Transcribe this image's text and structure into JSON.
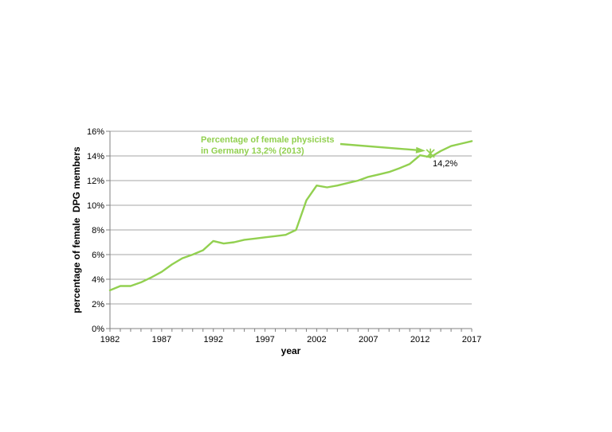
{
  "page": {
    "background": "#ffffff"
  },
  "chart_data": {
    "type": "line",
    "title": "",
    "xlabel": "year",
    "ylabel": "percentage of female  DPG members",
    "xlim": [
      1982,
      2017
    ],
    "ylim": [
      0,
      16
    ],
    "grid": "horizontal",
    "legend": "none",
    "x": [
      1982,
      1983,
      1984,
      1985,
      1986,
      1987,
      1988,
      1989,
      1990,
      1991,
      1992,
      1993,
      1994,
      1995,
      1996,
      1997,
      1998,
      1999,
      2000,
      2001,
      2002,
      2003,
      2004,
      2005,
      2006,
      2007,
      2008,
      2009,
      2010,
      2011,
      2012,
      2013,
      2014,
      2015,
      2016,
      2017
    ],
    "series": [
      {
        "name": "percentage of female DPG members",
        "values": [
          3.1,
          3.45,
          3.45,
          3.75,
          4.15,
          4.6,
          5.2,
          5.7,
          6.0,
          6.35,
          7.1,
          6.9,
          7.0,
          7.2,
          7.3,
          7.4,
          7.5,
          7.6,
          8.0,
          10.4,
          11.6,
          11.45,
          11.6,
          11.8,
          12.0,
          12.3,
          12.5,
          12.7,
          13.0,
          13.35,
          14.05,
          13.9,
          14.4,
          14.8,
          15.0,
          15.2
        ]
      }
    ],
    "xticks": {
      "values": [
        1982,
        1987,
        1992,
        1997,
        2002,
        2007,
        2012,
        2017
      ],
      "labels": [
        "1982",
        "1987",
        "1992",
        "1997",
        "2002",
        "2007",
        "2012",
        "2017"
      ],
      "minor_step": 1
    },
    "yticks": {
      "values": [
        0,
        2,
        4,
        6,
        8,
        10,
        12,
        14,
        16
      ],
      "labels": [
        "0%",
        "2%",
        "4%",
        "6%",
        "8%",
        "10%",
        "12%",
        "14%",
        "16%"
      ]
    },
    "annotation": {
      "lines": [
        "Percentage of female physicists",
        "in Germany 13,2% (2013)"
      ]
    },
    "marker": {
      "x": 2013,
      "y": 14.2,
      "label": "14,2%",
      "shape": "star"
    },
    "colors": {
      "series": "#92D050",
      "annotation": "#92D050",
      "grid": "#a6a6a6",
      "axis": "#808080",
      "text": "#000000"
    }
  }
}
